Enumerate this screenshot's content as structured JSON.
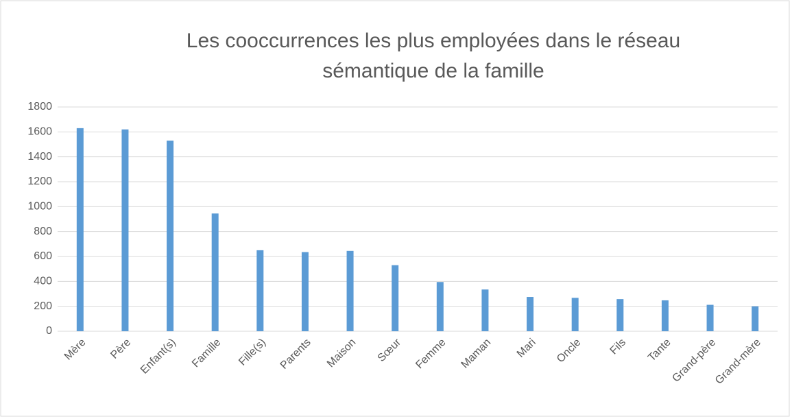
{
  "chart_data": {
    "type": "bar",
    "title": "Les cooccurrences les plus employées dans le réseau sémantique de la famille",
    "categories": [
      "Mère",
      "Père",
      "Enfant(s)",
      "Famille",
      "Fille(s)",
      "Parents",
      "Maison",
      "Sœur",
      "Femme",
      "Maman",
      "Mari",
      "Oncle",
      "Fils",
      "Tante",
      "Grand-père",
      "Grand-mère"
    ],
    "values": [
      1630,
      1620,
      1530,
      945,
      650,
      635,
      645,
      530,
      395,
      335,
      275,
      268,
      258,
      248,
      212,
      200
    ],
    "color": "#5b9bd5",
    "ylim": [
      0,
      1800
    ],
    "yticks": [
      0,
      200,
      400,
      600,
      800,
      1000,
      1200,
      1400,
      1600,
      1800
    ],
    "grid": true
  }
}
